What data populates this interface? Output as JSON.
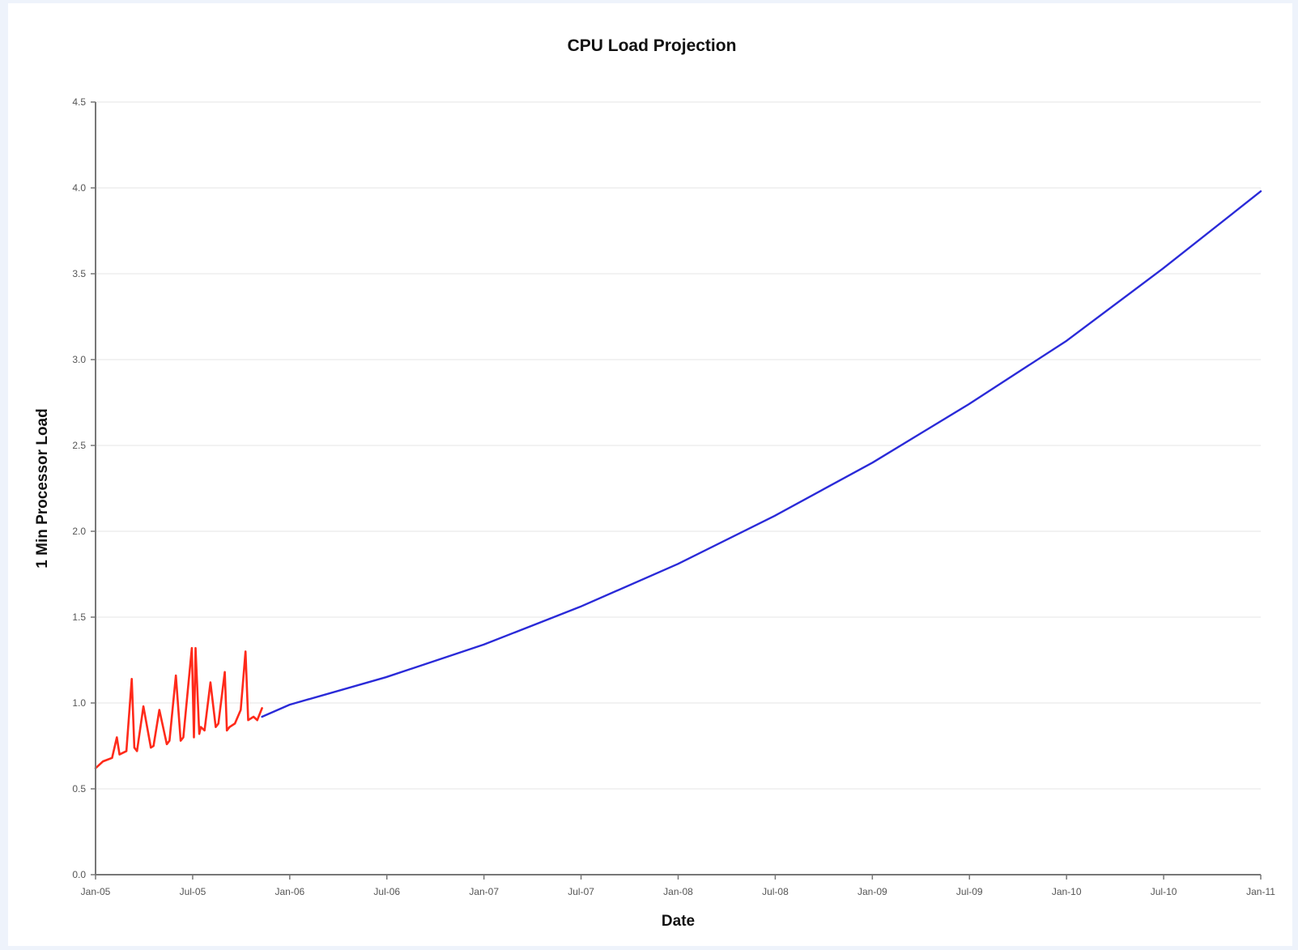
{
  "chart_data": {
    "type": "line",
    "title": "CPU Load Projection",
    "xlabel": "Date",
    "ylabel": "1 Min Processor Load",
    "x_ticks": [
      "Jan-05",
      "Jul-05",
      "Jan-06",
      "Jul-06",
      "Jan-07",
      "Jul-07",
      "Jan-08",
      "Jul-08",
      "Jan-09",
      "Jul-09",
      "Jan-10",
      "Jul-10",
      "Jan-11"
    ],
    "y_ticks": [
      "0.0",
      "0.5",
      "1.0",
      "1.5",
      "2.0",
      "2.5",
      "3.0",
      "3.5",
      "4.0",
      "4.5"
    ],
    "xlim": [
      "2005-01-01",
      "2011-01-01"
    ],
    "ylim": [
      0,
      4.5
    ],
    "grid": "horizontal",
    "series": [
      {
        "color": "#ff2a1a",
        "x": [
          "2005-01-01",
          "2005-01-15",
          "2005-02-01",
          "2005-02-10",
          "2005-02-15",
          "2005-02-28",
          "2005-03-10",
          "2005-03-15",
          "2005-03-20",
          "2005-04-01",
          "2005-04-15",
          "2005-04-20",
          "2005-05-01",
          "2005-05-15",
          "2005-05-20",
          "2005-06-01",
          "2005-06-10",
          "2005-06-15",
          "2005-07-01",
          "2005-07-05",
          "2005-07-08",
          "2005-07-15",
          "2005-07-18",
          "2005-07-25",
          "2005-08-05",
          "2005-08-15",
          "2005-08-20",
          "2005-09-01",
          "2005-09-05",
          "2005-09-10",
          "2005-09-20",
          "2005-10-01",
          "2005-10-10",
          "2005-10-15",
          "2005-10-25",
          "2005-11-01",
          "2005-11-10"
        ],
        "y": [
          0.62,
          0.66,
          0.68,
          0.8,
          0.7,
          0.72,
          1.14,
          0.74,
          0.72,
          0.98,
          0.74,
          0.75,
          0.96,
          0.76,
          0.78,
          1.16,
          0.78,
          0.8,
          1.32,
          0.8,
          1.32,
          0.82,
          0.86,
          0.84,
          1.12,
          0.86,
          0.88,
          1.18,
          0.84,
          0.86,
          0.88,
          0.96,
          1.3,
          0.9,
          0.92,
          0.9,
          0.97
        ]
      },
      {
        "color": "#2a2ad8",
        "x": [
          "2005-11-10",
          "2006-01-01",
          "2006-07-01",
          "2007-01-01",
          "2007-07-01",
          "2008-01-01",
          "2008-07-01",
          "2009-01-01",
          "2009-07-01",
          "2010-01-01",
          "2010-07-01",
          "2011-01-01"
        ],
        "y": [
          0.92,
          0.99,
          1.15,
          1.34,
          1.56,
          1.81,
          2.09,
          2.4,
          2.74,
          3.11,
          3.53,
          3.98
        ]
      }
    ]
  }
}
